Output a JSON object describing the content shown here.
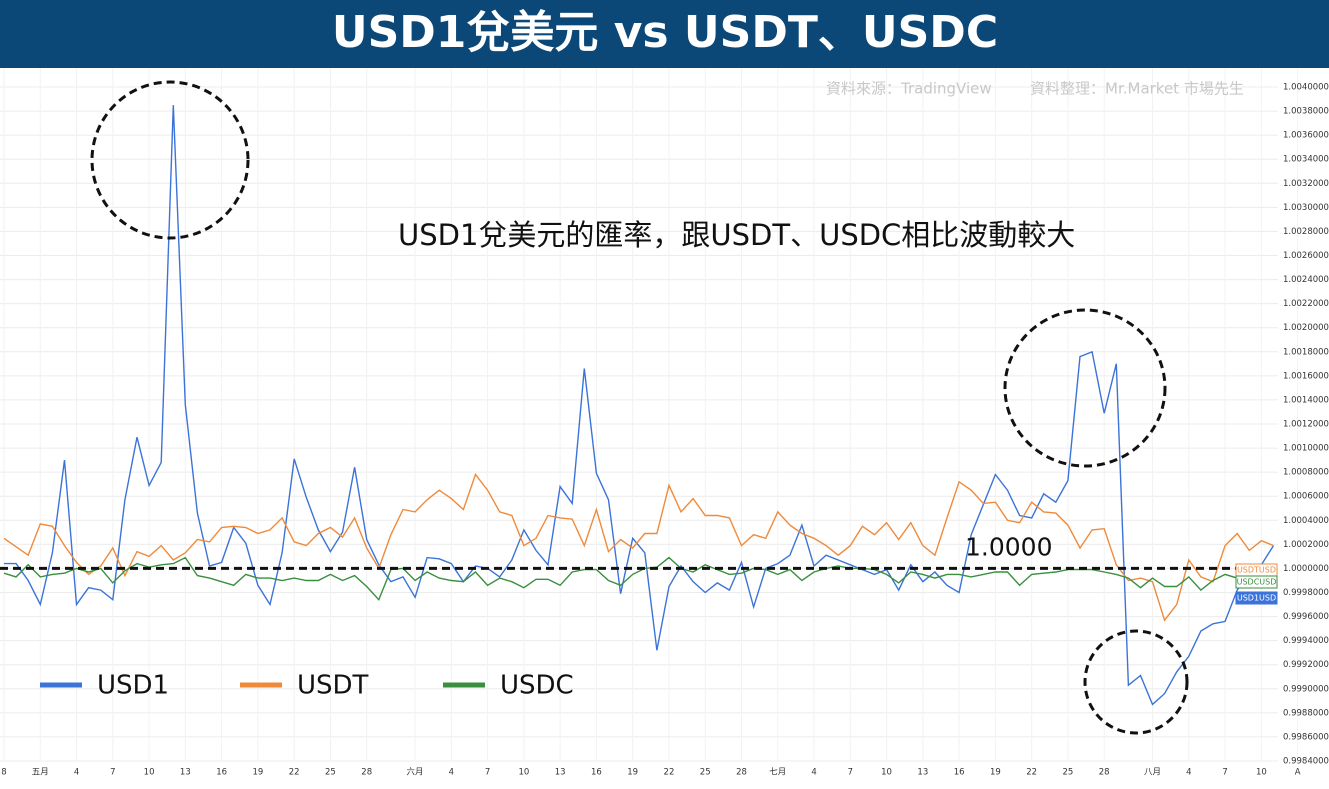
{
  "chart_data": {
    "type": "line",
    "title": "USD1兌美元 vs USDT、USDC",
    "source": "資料來源：TradingView",
    "compiled_by": "資料整理：Mr.Market 市場先生",
    "annotation": "USD1兌美元的匯率，跟USDT、USDC相比波動較大",
    "reference_line": {
      "value": 1,
      "label": "1.0000"
    },
    "grid": true,
    "legend": "bottom-left",
    "ylim": [
      0.9984,
      1.004
    ],
    "yticks": [
      {
        "value": 1.004,
        "label": "1.00400000"
      },
      {
        "value": 1.0038,
        "label": "1.00380000"
      },
      {
        "value": 1.0036,
        "label": "1.00360000"
      },
      {
        "value": 1.0034,
        "label": "1.00340000"
      },
      {
        "value": 1.0032,
        "label": "1.00320000"
      },
      {
        "value": 1.003,
        "label": "1.00300000"
      },
      {
        "value": 1.0028,
        "label": "1.00280000"
      },
      {
        "value": 1.0026,
        "label": "1.00260000"
      },
      {
        "value": 1.0024,
        "label": "1.00240000"
      },
      {
        "value": 1.0022,
        "label": "1.00220000"
      },
      {
        "value": 1.002,
        "label": "1.00200000"
      },
      {
        "value": 1.0018,
        "label": "1.00180000"
      },
      {
        "value": 1.0016,
        "label": "1.00160000"
      },
      {
        "value": 1.0014,
        "label": "1.00140000"
      },
      {
        "value": 1.0012,
        "label": "1.00120000"
      },
      {
        "value": 1.001,
        "label": "1.00100000"
      },
      {
        "value": 1.0008,
        "label": "1.00080000"
      },
      {
        "value": 1.0006,
        "label": "1.00060000"
      },
      {
        "value": 1.0004,
        "label": "1.00040000"
      },
      {
        "value": 1.0002,
        "label": "1.00020000"
      },
      {
        "value": 1,
        "label": "1.00000000"
      },
      {
        "value": 0.9998,
        "label": "0.99980000"
      },
      {
        "value": 0.9996,
        "label": "0.99960000"
      },
      {
        "value": 0.9994,
        "label": "0.99940000"
      },
      {
        "value": 0.9992,
        "label": "0.99920000"
      },
      {
        "value": 0.999,
        "label": "0.99900000"
      },
      {
        "value": 0.9988,
        "label": "0.99880000"
      },
      {
        "value": 0.9986,
        "label": "0.99860000"
      },
      {
        "value": 0.9984,
        "label": "0.99840000"
      }
    ],
    "categories": [
      "8",
      null,
      null,
      "五月",
      null,
      null,
      "4",
      null,
      null,
      "7",
      null,
      null,
      "10",
      null,
      null,
      "13",
      null,
      null,
      "16",
      null,
      null,
      "19",
      null,
      null,
      "22",
      null,
      null,
      "25",
      null,
      null,
      "28",
      null,
      null,
      null,
      "六月",
      null,
      null,
      "4",
      null,
      null,
      "7",
      null,
      null,
      "10",
      null,
      null,
      "13",
      null,
      null,
      "16",
      null,
      null,
      "19",
      null,
      null,
      "22",
      null,
      null,
      "25",
      null,
      null,
      "28",
      null,
      null,
      "七月",
      null,
      null,
      "4",
      null,
      null,
      "7",
      null,
      null,
      "10",
      null,
      null,
      "13",
      null,
      null,
      "16",
      null,
      null,
      "19",
      null,
      null,
      "22",
      null,
      null,
      "25",
      null,
      null,
      "28",
      null,
      null,
      null,
      "八月",
      null,
      null,
      "4",
      null,
      null,
      "7",
      null,
      null,
      "10",
      null,
      null,
      "A"
    ],
    "series": [
      {
        "name": "USD1",
        "tag": "USD1USD",
        "color": "#3b73d9",
        "values": [
          1.00004,
          1.00004,
          0.9999,
          0.9997,
          1.00013,
          1.0009,
          0.9997,
          0.99984,
          0.99982,
          0.99974,
          1.00057,
          1.00109,
          1.00069,
          1.00088,
          1.00385,
          1.00136,
          1.00046,
          1.00002,
          1.00005,
          1.00034,
          1.00021,
          0.99986,
          0.9997,
          1.00013,
          1.00091,
          1.00059,
          1.00032,
          1.00014,
          1.0003,
          1.00084,
          1.00024,
          1.00003,
          0.99989,
          0.99993,
          0.99976,
          1.00009,
          1.00008,
          1.00004,
          0.99989,
          1.00002,
          1.0,
          0.99993,
          1.00007,
          1.00032,
          1.00015,
          1.00003,
          1.00068,
          1.00054,
          1.00166,
          1.00079,
          1.00057,
          0.99979,
          1.00025,
          1.00013,
          0.99932,
          0.99985,
          1.00002,
          0.99989,
          0.9998,
          0.99988,
          0.99982,
          1.00005,
          0.99968,
          1.0,
          1.00004,
          1.00011,
          1.00036,
          1.00002,
          1.00011,
          1.00007,
          1.00003,
          0.99999,
          0.99995,
          0.99999,
          0.99982,
          1.00003,
          0.99989,
          0.99997,
          0.99986,
          0.9998,
          1.00028,
          1.00053,
          1.00078,
          1.00065,
          1.00044,
          1.00042,
          1.00062,
          1.00055,
          1.00073,
          1.00176,
          1.0018,
          1.00129,
          1.0017,
          0.99903,
          0.99911,
          0.99887,
          0.99896,
          0.99914,
          0.99927,
          0.99948,
          0.99954,
          0.99956,
          0.99982,
          0.99995,
          1.00003,
          1.00019,
          null,
          null
        ]
      },
      {
        "name": "USDT",
        "tag": "USDTUSD",
        "color": "#ef8a3c",
        "values": [
          1.00025,
          1.00018,
          1.00011,
          1.00037,
          1.00035,
          1.00019,
          1.00005,
          0.99995,
          1.00002,
          1.00017,
          0.99994,
          1.00014,
          1.0001,
          1.00019,
          1.00007,
          1.00013,
          1.00024,
          1.00022,
          1.00034,
          1.00035,
          1.00034,
          1.00029,
          1.00032,
          1.00042,
          1.00022,
          1.00019,
          1.00029,
          1.00034,
          1.00026,
          1.00042,
          1.00017,
          1.0,
          1.00028,
          1.00049,
          1.00047,
          1.00057,
          1.00065,
          1.00058,
          1.00049,
          1.00078,
          1.00065,
          1.00047,
          1.00044,
          1.00019,
          1.00025,
          1.00044,
          1.00042,
          1.00041,
          1.00019,
          1.00049,
          1.00014,
          1.00024,
          1.00017,
          1.00029,
          1.00029,
          1.00069,
          1.00047,
          1.00058,
          1.00044,
          1.00044,
          1.00042,
          1.00019,
          1.00028,
          1.00025,
          1.00047,
          1.00036,
          1.00029,
          1.00025,
          1.00019,
          1.00011,
          1.00019,
          1.00035,
          1.00028,
          1.00038,
          1.00024,
          1.00038,
          1.00019,
          1.00011,
          1.00042,
          1.00072,
          1.00065,
          1.00054,
          1.00055,
          1.0004,
          1.00038,
          1.00055,
          1.00047,
          1.00046,
          1.00036,
          1.00017,
          1.00032,
          1.00033,
          1.00003,
          0.9999,
          0.99992,
          0.99989,
          0.99957,
          0.9997,
          1.00007,
          0.99993,
          0.99989,
          1.00019,
          1.00029,
          1.00015,
          1.00023,
          1.00019,
          null,
          null
        ]
      },
      {
        "name": "USDC",
        "tag": "USDCUSD",
        "color": "#3a8f3e",
        "values": [
          0.99996,
          0.99993,
          1.00003,
          0.99993,
          0.99995,
          0.99996,
          1.0,
          0.99997,
          1.0,
          0.99988,
          0.99998,
          1.00004,
          1.00001,
          1.00003,
          1.00004,
          1.00009,
          0.99994,
          0.99992,
          0.99989,
          0.99986,
          0.99995,
          0.99992,
          0.99992,
          0.9999,
          0.99992,
          0.9999,
          0.9999,
          0.99995,
          0.9999,
          0.99994,
          0.99985,
          0.99974,
          0.99999,
          1.0,
          0.9999,
          0.99997,
          0.99992,
          0.9999,
          0.99989,
          0.99997,
          0.99986,
          0.99992,
          0.99989,
          0.99984,
          0.99991,
          0.99991,
          0.99986,
          0.99997,
          0.99999,
          0.99999,
          0.9999,
          0.99986,
          0.99995,
          1.0,
          1.00001,
          1.00009,
          1.0,
          0.99997,
          1.00003,
          0.99999,
          0.99995,
          0.99996,
          1.0,
          0.99999,
          0.99995,
          0.99999,
          0.9999,
          0.99997,
          1.0,
          1.00002,
          1.0,
          1.0,
          0.99999,
          0.99995,
          0.99988,
          0.99997,
          0.99995,
          0.99992,
          0.99995,
          0.99995,
          0.99993,
          0.99995,
          0.99997,
          0.99997,
          0.99986,
          0.99995,
          0.99996,
          0.99997,
          0.99999,
          0.99999,
          0.99999,
          0.99997,
          0.99995,
          0.99992,
          0.99984,
          0.99992,
          0.99985,
          0.99985,
          0.99993,
          0.99982,
          0.9999,
          0.99995,
          0.99992,
          0.99996,
          0.99999,
          1.0,
          null,
          null
        ]
      }
    ]
  }
}
